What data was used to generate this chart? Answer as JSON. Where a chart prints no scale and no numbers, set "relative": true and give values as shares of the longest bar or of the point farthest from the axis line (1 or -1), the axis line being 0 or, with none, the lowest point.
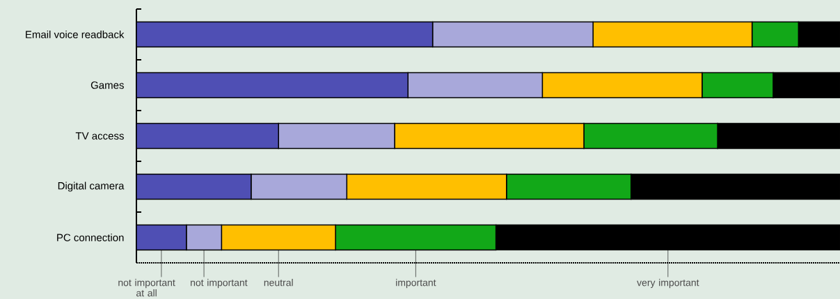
{
  "chart_data": {
    "type": "bar",
    "orientation": "horizontal",
    "stacked": true,
    "relative": true,
    "legend": "bottom",
    "categories": [
      "Email voice readback",
      "Games",
      "TV access",
      "Digital camera",
      "PC connection"
    ],
    "series": [
      {
        "name": "not important at all",
        "color": "#4f4fb4",
        "values": [
          0.421,
          0.386,
          0.202,
          0.163,
          0.071
        ]
      },
      {
        "name": "not important",
        "color": "#a8a8da",
        "values": [
          0.228,
          0.191,
          0.165,
          0.136,
          0.05
        ]
      },
      {
        "name": "neutral",
        "color": "#ffbf00",
        "values": [
          0.226,
          0.227,
          0.269,
          0.227,
          0.162
        ]
      },
      {
        "name": "important",
        "color": "#12a818",
        "values": [
          0.066,
          0.101,
          0.19,
          0.177,
          0.228
        ]
      },
      {
        "name": "very important",
        "color": "#000000",
        "values": [
          0.059,
          0.095,
          0.174,
          0.297,
          0.489
        ]
      }
    ]
  }
}
